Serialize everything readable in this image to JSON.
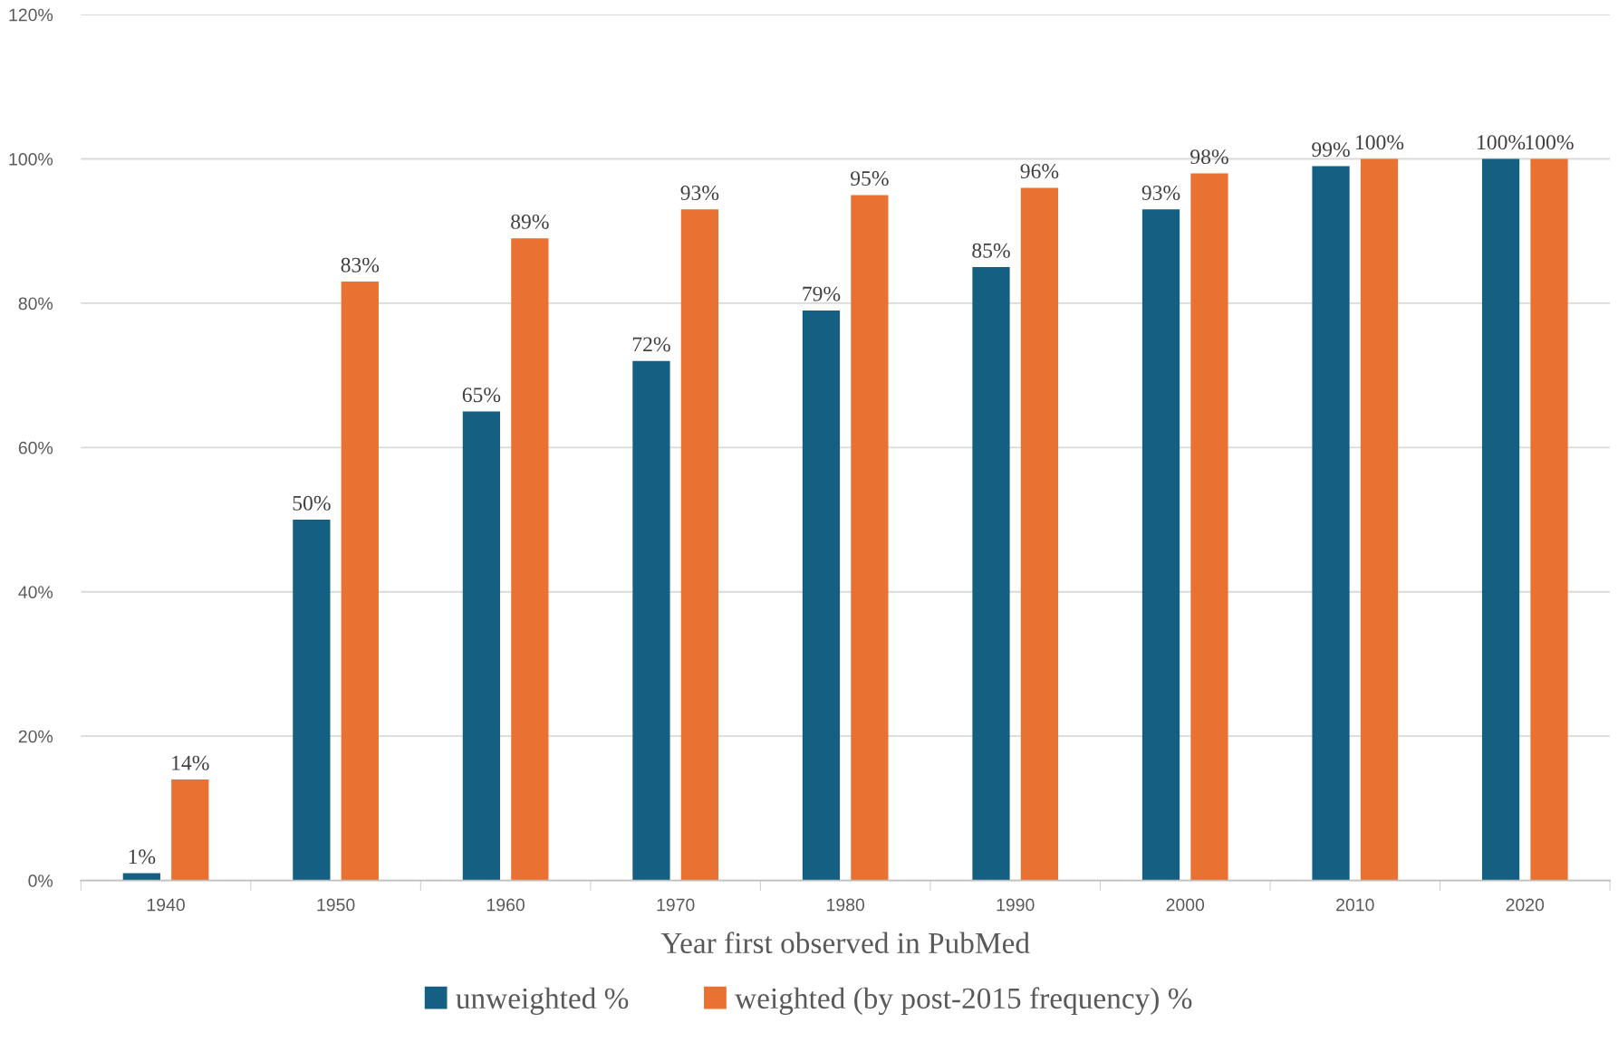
{
  "chart_data": {
    "type": "bar",
    "xlabel": "Year first observed in PubMed",
    "categories": [
      "1940",
      "1950",
      "1960",
      "1970",
      "1980",
      "1990",
      "2000",
      "2010",
      "2020"
    ],
    "series": [
      {
        "name": "unweighted %",
        "color": "#156082",
        "values": [
          1,
          50,
          65,
          72,
          79,
          85,
          93,
          99,
          100
        ],
        "value_labels": [
          "1%",
          "50%",
          "65%",
          "72%",
          "79%",
          "85%",
          "93%",
          "99%",
          "100%"
        ]
      },
      {
        "name": "weighted (by post-2015 frequency) %",
        "color": "#e97132",
        "values": [
          14,
          83,
          89,
          93,
          95,
          96,
          98,
          100,
          100
        ],
        "value_labels": [
          "14%",
          "83%",
          "89%",
          "93%",
          "95%",
          "96%",
          "98%",
          "100%",
          "100%"
        ]
      }
    ],
    "ylim": [
      0,
      120
    ],
    "yticks": [
      {
        "value": 0,
        "label": "0%"
      },
      {
        "value": 20,
        "label": "20%"
      },
      {
        "value": 40,
        "label": "40%"
      },
      {
        "value": 60,
        "label": "60%"
      },
      {
        "value": 80,
        "label": "80%"
      },
      {
        "value": 100,
        "label": "100%"
      },
      {
        "value": 120,
        "label": "120%"
      }
    ],
    "grid": "y",
    "legend": "bottom"
  }
}
